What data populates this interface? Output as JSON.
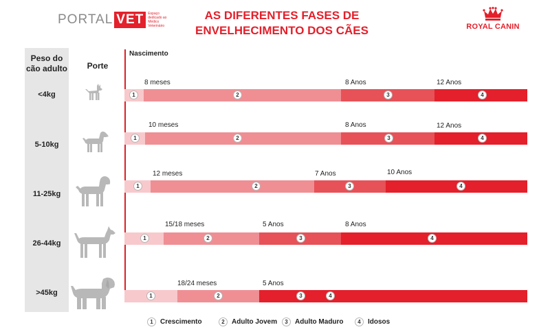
{
  "header": {
    "logo_portal": "PORTAL",
    "logo_vet": "VET",
    "logo_tagline": "Espaço dedicado ao Médico Veterinário",
    "title_line1": "AS DIFERENTES FASES DE",
    "title_line2": "ENVELHECIMENTO DOS CÃES",
    "brand": "ROYAL CANIN"
  },
  "columns": {
    "weight_line1": "Peso do",
    "weight_line2": "cão adulto",
    "size": "Porte",
    "birth": "Nascimento"
  },
  "colors": {
    "stage1": "#f8c9cc",
    "stage2": "#ef8f94",
    "stage3": "#e65258",
    "stage4": "#e3202b"
  },
  "rows": [
    {
      "weight": "<4kg",
      "dog_icon": "tiny-dog-icon",
      "stages": [
        {
          "number": "1",
          "starts_at": ""
        },
        {
          "number": "2",
          "starts_at": "8 meses"
        },
        {
          "number": "3",
          "starts_at": "8 Anos"
        },
        {
          "number": "4",
          "starts_at": "12 Anos"
        }
      ]
    },
    {
      "weight": "5-10kg",
      "dog_icon": "small-dog-icon",
      "stages": [
        {
          "number": "1",
          "starts_at": ""
        },
        {
          "number": "2",
          "starts_at": "10 meses"
        },
        {
          "number": "3",
          "starts_at": "8 Anos"
        },
        {
          "number": "4",
          "starts_at": "12 Anos"
        }
      ]
    },
    {
      "weight": "11-25kg",
      "dog_icon": "medium-dog-icon",
      "stages": [
        {
          "number": "1",
          "starts_at": ""
        },
        {
          "number": "2",
          "starts_at": "12 meses"
        },
        {
          "number": "3",
          "starts_at": "7 Anos"
        },
        {
          "number": "4",
          "starts_at": "10 Anos"
        }
      ]
    },
    {
      "weight": "26-44kg",
      "dog_icon": "large-dog-icon",
      "stages": [
        {
          "number": "1",
          "starts_at": ""
        },
        {
          "number": "2",
          "starts_at": "15/18 meses"
        },
        {
          "number": "3",
          "starts_at": "5 Anos"
        },
        {
          "number": "4",
          "starts_at": "8 Anos"
        }
      ]
    },
    {
      "weight": ">45kg",
      "dog_icon": "giant-dog-icon",
      "stages": [
        {
          "number": "1",
          "starts_at": ""
        },
        {
          "number": "2",
          "starts_at": "18/24 meses"
        },
        {
          "number": "3",
          "starts_at": "5 Anos"
        },
        {
          "number": "4",
          "starts_at": ""
        }
      ]
    }
  ],
  "legend": [
    {
      "number": "1",
      "label": "Crescimento"
    },
    {
      "number": "2",
      "label": "Adulto Jovem"
    },
    {
      "number": "3",
      "label": "Adulto Maduro"
    },
    {
      "number": "4",
      "label": "Idosos"
    }
  ]
}
